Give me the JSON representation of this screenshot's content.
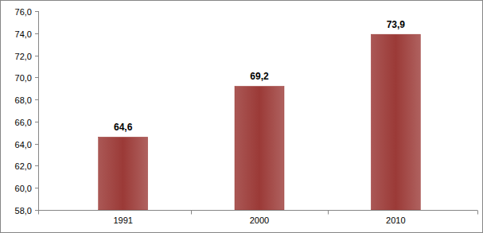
{
  "chart_data": {
    "type": "bar",
    "categories": [
      "1991",
      "2000",
      "2010"
    ],
    "values": [
      64.6,
      69.2,
      73.9
    ],
    "value_labels": [
      "64,6",
      "69,2",
      "73,9"
    ],
    "color": "#9b3a37",
    "ylim": [
      58,
      76
    ],
    "yticks": [
      {
        "value": 58,
        "label": "58,0"
      },
      {
        "value": 60,
        "label": "60,0"
      },
      {
        "value": 62,
        "label": "62,0"
      },
      {
        "value": 64,
        "label": "64,0"
      },
      {
        "value": 66,
        "label": "66,0"
      },
      {
        "value": 68,
        "label": "68,0"
      },
      {
        "value": 70,
        "label": "70,0"
      },
      {
        "value": 72,
        "label": "72,0"
      },
      {
        "value": 74,
        "label": "74,0"
      },
      {
        "value": 76,
        "label": "76,0"
      }
    ],
    "grid": false,
    "data_labels": true
  }
}
